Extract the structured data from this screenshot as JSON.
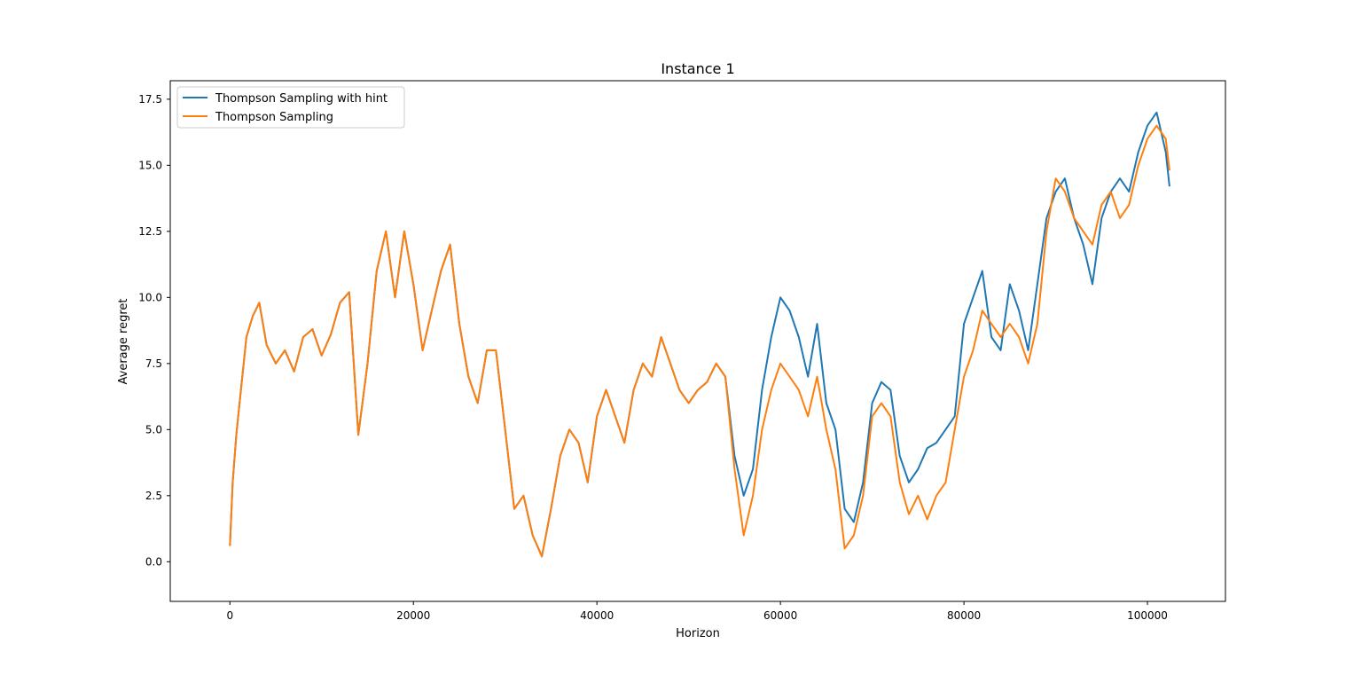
{
  "chart_data": {
    "type": "line",
    "title": "Instance 1",
    "xlabel": "Horizon",
    "ylabel": "Average regret",
    "xlim": [
      -6500,
      108500
    ],
    "ylim": [
      -1.5,
      18.2
    ],
    "xticks": [
      0,
      20000,
      40000,
      60000,
      80000,
      100000
    ],
    "xtick_labels": [
      "0",
      "20000",
      "40000",
      "60000",
      "80000",
      "100000"
    ],
    "yticks": [
      0.0,
      2.5,
      5.0,
      7.5,
      10.0,
      12.5,
      15.0,
      17.5
    ],
    "ytick_labels": [
      "0.0",
      "2.5",
      "5.0",
      "7.5",
      "10.0",
      "12.5",
      "15.0",
      "17.5"
    ],
    "grid": false,
    "legend_position": "upper-left",
    "series": [
      {
        "name": "Thompson Sampling with hint",
        "color": "#1f77b4",
        "x": [
          0,
          300,
          700,
          1200,
          1800,
          2500,
          3200,
          4000,
          5000,
          6000,
          7000,
          8000,
          9000,
          10000,
          11000,
          12000,
          13000,
          14000,
          15000,
          16000,
          17000,
          18000,
          19000,
          20000,
          21000,
          22000,
          23000,
          24000,
          25000,
          26000,
          27000,
          28000,
          29000,
          30000,
          31000,
          32000,
          33000,
          34000,
          35000,
          36000,
          37000,
          38000,
          39000,
          40000,
          41000,
          42000,
          43000,
          44000,
          45000,
          46000,
          47000,
          48000,
          49000,
          50000,
          51000,
          52000,
          53000,
          54000,
          55000,
          56000,
          57000,
          58000,
          59000,
          60000,
          61000,
          62000,
          63000,
          64000,
          65000,
          66000,
          67000,
          68000,
          69000,
          70000,
          71000,
          72000,
          73000,
          74000,
          75000,
          76000,
          77000,
          78000,
          79000,
          80000,
          81000,
          82000,
          83000,
          84000,
          85000,
          86000,
          87000,
          88000,
          89000,
          90000,
          91000,
          92000,
          93000,
          94000,
          95000,
          96000,
          97000,
          98000,
          99000,
          100000,
          101000,
          102000,
          102400
        ],
        "y": [
          0.6,
          3.0,
          4.8,
          6.5,
          8.5,
          9.3,
          9.8,
          8.2,
          7.5,
          8.0,
          7.2,
          8.5,
          8.8,
          7.8,
          8.6,
          9.8,
          10.2,
          4.8,
          7.5,
          11.0,
          12.5,
          10.0,
          12.5,
          10.5,
          8.0,
          9.5,
          11.0,
          12.0,
          9.0,
          7.0,
          6.0,
          8.0,
          8.0,
          5.0,
          2.0,
          2.5,
          1.0,
          0.2,
          2.0,
          4.0,
          5.0,
          4.5,
          3.0,
          5.5,
          6.5,
          5.5,
          4.5,
          6.5,
          7.5,
          7.0,
          8.5,
          7.5,
          6.5,
          6.0,
          6.5,
          6.8,
          7.5,
          7.0,
          4.0,
          2.5,
          3.5,
          6.5,
          8.5,
          10.0,
          9.5,
          8.5,
          7.0,
          9.0,
          6.0,
          5.0,
          2.0,
          1.5,
          3.0,
          6.0,
          6.8,
          6.5,
          4.0,
          3.0,
          3.5,
          4.3,
          4.5,
          5.0,
          5.5,
          9.0,
          10.0,
          11.0,
          8.5,
          8.0,
          10.5,
          9.5,
          8.0,
          10.5,
          13.0,
          14.0,
          14.5,
          13.0,
          12.0,
          10.5,
          13.0,
          14.0,
          14.5,
          14.0,
          15.5,
          16.5,
          17.0,
          15.5,
          14.2
        ]
      },
      {
        "name": "Thompson Sampling",
        "color": "#ff7f0e",
        "x": [
          0,
          300,
          700,
          1200,
          1800,
          2500,
          3200,
          4000,
          5000,
          6000,
          7000,
          8000,
          9000,
          10000,
          11000,
          12000,
          13000,
          14000,
          15000,
          16000,
          17000,
          18000,
          19000,
          20000,
          21000,
          22000,
          23000,
          24000,
          25000,
          26000,
          27000,
          28000,
          29000,
          30000,
          31000,
          32000,
          33000,
          34000,
          35000,
          36000,
          37000,
          38000,
          39000,
          40000,
          41000,
          42000,
          43000,
          44000,
          45000,
          46000,
          47000,
          48000,
          49000,
          50000,
          51000,
          52000,
          53000,
          54000,
          55000,
          56000,
          57000,
          58000,
          59000,
          60000,
          61000,
          62000,
          63000,
          64000,
          65000,
          66000,
          67000,
          68000,
          69000,
          70000,
          71000,
          72000,
          73000,
          74000,
          75000,
          76000,
          77000,
          78000,
          79000,
          80000,
          81000,
          82000,
          83000,
          84000,
          85000,
          86000,
          87000,
          88000,
          89000,
          90000,
          91000,
          92000,
          93000,
          94000,
          95000,
          96000,
          97000,
          98000,
          99000,
          100000,
          101000,
          102000,
          102400
        ],
        "y": [
          0.6,
          3.0,
          4.8,
          6.5,
          8.5,
          9.3,
          9.8,
          8.2,
          7.5,
          8.0,
          7.2,
          8.5,
          8.8,
          7.8,
          8.6,
          9.8,
          10.2,
          4.8,
          7.5,
          11.0,
          12.5,
          10.0,
          12.5,
          10.5,
          8.0,
          9.5,
          11.0,
          12.0,
          9.0,
          7.0,
          6.0,
          8.0,
          8.0,
          5.0,
          2.0,
          2.5,
          1.0,
          0.2,
          2.0,
          4.0,
          5.0,
          4.5,
          3.0,
          5.5,
          6.5,
          5.5,
          4.5,
          6.5,
          7.5,
          7.0,
          8.5,
          7.5,
          6.5,
          6.0,
          6.5,
          6.8,
          7.5,
          7.0,
          3.5,
          1.0,
          2.5,
          5.0,
          6.5,
          7.5,
          7.0,
          6.5,
          5.5,
          7.0,
          5.0,
          3.5,
          0.5,
          1.0,
          2.5,
          5.5,
          6.0,
          5.5,
          3.0,
          1.8,
          2.5,
          1.6,
          2.5,
          3.0,
          5.0,
          7.0,
          8.0,
          9.5,
          9.0,
          8.5,
          9.0,
          8.5,
          7.5,
          9.0,
          12.5,
          14.5,
          14.0,
          13.0,
          12.5,
          12.0,
          13.5,
          14.0,
          13.0,
          13.5,
          15.0,
          16.0,
          16.5,
          16.0,
          14.8
        ]
      }
    ]
  }
}
